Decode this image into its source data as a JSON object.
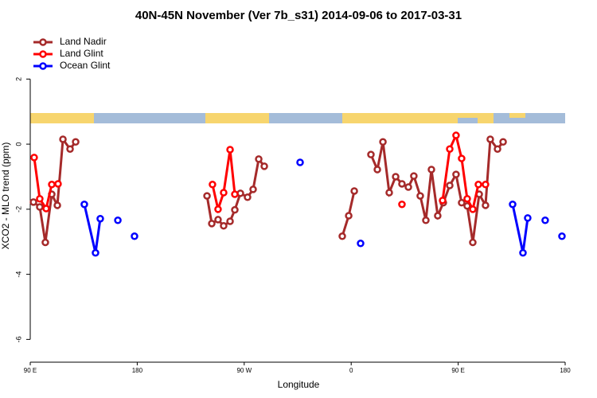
{
  "chart_data": {
    "type": "line",
    "title": "40N-45N November (Ver 7b_s31)   2014-09-06 to 2017-03-31",
    "x_label": "Longitude",
    "y_label": "XCO2 - MLO trend (ppm)",
    "xlim": [
      90,
      540
    ],
    "ylim": [
      -6.7,
      3.5
    ],
    "xticks": [
      {
        "value": 90,
        "label": "90 E"
      },
      180,
      {
        "value": 270,
        "label": "90 W"
      },
      {
        "value": 360,
        "label": "0"
      },
      {
        "value": 450,
        "label": "90 E"
      },
      {
        "value": 540,
        "label": "180"
      }
    ],
    "yticks": [
      2,
      0,
      -2,
      -4,
      -6
    ],
    "legend": "top-left",
    "series": [
      {
        "name": "Land Nadir",
        "color": "#a52a2a",
        "x": [
          92.7,
          98.0,
          102.7,
          108.1,
          112.8,
          117.5,
          123.5,
          128.2,
          null,
          238.7,
          242.7,
          248.0,
          252.7,
          258.1,
          262.1,
          266.8,
          272.8,
          277.5,
          282.2,
          286.9,
          null,
          352.5,
          357.9,
          362.6,
          null,
          376.6,
          382.0,
          386.7,
          392.0,
          397.4,
          402.7,
          408.1,
          412.7,
          418.1,
          422.8,
          427.5,
          432.8,
          437.5,
          442.9,
          448.2,
          452.9,
          457.6,
          462.3,
          467.7,
          473.0,
          477.0,
          483.1,
          487.8
        ],
        "values": [
          -1.78,
          -1.93,
          -3.02,
          -1.54,
          -1.88,
          0.15,
          -0.15,
          0.07,
          null,
          -1.59,
          -2.44,
          -2.32,
          -2.51,
          -2.37,
          -2.02,
          -1.51,
          -1.63,
          -1.39,
          -0.46,
          -0.68,
          null,
          -2.83,
          -2.2,
          -1.44,
          null,
          -0.32,
          -0.78,
          0.07,
          -1.49,
          -1.0,
          -1.22,
          -1.32,
          -0.98,
          -1.59,
          -2.34,
          -0.78,
          -2.2,
          -1.8,
          -1.27,
          -0.93,
          -1.8,
          -1.9,
          -3.02,
          -1.54,
          -1.88,
          0.15,
          -0.15,
          0.07
        ]
      },
      {
        "name": "Land Glint",
        "color": "#ff0000",
        "x": [
          93.3,
          98.0,
          103.4,
          108.1,
          113.4,
          null,
          243.3,
          248.0,
          252.7,
          258.1,
          262.1,
          null,
          402.7,
          null,
          436.9,
          442.9,
          448.2,
          452.9,
          457.6,
          462.3,
          467.0,
          473.0
        ],
        "values": [
          -0.41,
          -1.68,
          -1.98,
          -1.24,
          -1.22,
          null,
          -1.24,
          -2.0,
          -1.49,
          -0.17,
          -1.54,
          null,
          -1.85,
          null,
          -1.73,
          -0.15,
          0.27,
          -0.44,
          -1.68,
          -2.0,
          -1.24,
          -1.24
        ]
      },
      {
        "name": "Ocean Glint",
        "color": "#0000ff",
        "x": [
          135.5,
          144.9,
          148.9,
          null,
          163.7,
          null,
          177.7,
          null,
          317.0,
          null,
          367.9,
          null,
          495.8,
          504.5,
          508.5,
          null,
          523.2,
          null,
          537.3
        ],
        "values": [
          -1.85,
          -3.34,
          -2.29,
          null,
          -2.34,
          null,
          -2.83,
          null,
          -0.56,
          null,
          -3.05,
          null,
          -1.85,
          -3.34,
          -2.27,
          null,
          -2.34,
          null,
          -2.83
        ]
      }
    ]
  }
}
